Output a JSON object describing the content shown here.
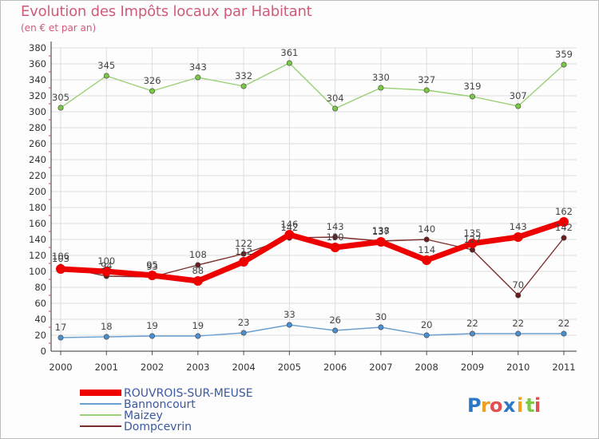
{
  "chart_data": {
    "type": "line",
    "title": "Evolution des Impôts locaux par Habitant",
    "subtitle": "(en € et par an)",
    "xlabel": "",
    "ylabel": "",
    "categories": [
      "2000",
      "2001",
      "2002",
      "2003",
      "2004",
      "2005",
      "2006",
      "2007",
      "2008",
      "2009",
      "2010",
      "2011"
    ],
    "ylim": [
      0,
      380
    ],
    "yticks": [
      0,
      20,
      40,
      60,
      80,
      100,
      120,
      140,
      160,
      180,
      200,
      220,
      240,
      260,
      280,
      300,
      320,
      340,
      360,
      380
    ],
    "grid": true,
    "series": [
      {
        "name": "ROUVROIS-SUR-MEUSE",
        "color": "#ee0000",
        "fill": "#ee0000",
        "bold": true,
        "values": [
          103,
          100,
          95,
          88,
          112,
          146,
          130,
          137,
          114,
          135,
          143,
          162
        ]
      },
      {
        "name": "Bannoncourt",
        "color": "#6a9fd0",
        "fill": "#4a8fd0",
        "bold": false,
        "values": [
          17,
          18,
          19,
          19,
          23,
          33,
          26,
          30,
          20,
          22,
          22,
          22
        ]
      },
      {
        "name": "Maizey",
        "color": "#99d074",
        "fill": "#7ac943",
        "bold": false,
        "values": [
          305,
          345,
          326,
          343,
          332,
          361,
          304,
          330,
          327,
          319,
          307,
          359
        ]
      },
      {
        "name": "Dompcevrin",
        "color": "#7a2e2e",
        "fill": "#6a1c1c",
        "bold": false,
        "values": [
          106,
          94,
          93,
          108,
          122,
          142,
          143,
          138,
          140,
          127,
          70,
          142
        ]
      }
    ],
    "data_labels": [
      [
        "103",
        "100",
        "95",
        "88",
        "112",
        "146",
        "130",
        "137",
        "114",
        "135",
        "143",
        "162"
      ],
      [
        "17",
        "18",
        "19",
        "19",
        "23",
        "33",
        "26",
        "30",
        "20",
        "22",
        "22",
        "22"
      ],
      [
        "305",
        "345",
        "326",
        "343",
        "332",
        "361",
        "304",
        "330",
        "327",
        "319",
        "307",
        "359"
      ],
      [
        "106",
        "94",
        "93",
        "108",
        "122",
        "142",
        "143",
        "138",
        "140",
        "127",
        "70",
        "142"
      ]
    ],
    "legend_position": "bottom-left"
  },
  "logo": {
    "letters": [
      {
        "char": "P",
        "color": "#2a78c8"
      },
      {
        "char": "r",
        "color": "#f0a020"
      },
      {
        "char": "o",
        "color": "#e05050"
      },
      {
        "char": "x",
        "color": "#2a78c8"
      },
      {
        "char": "i",
        "color": "#f0a020"
      },
      {
        "char": "t",
        "color": "#7ac943"
      },
      {
        "char": "i",
        "color": "#e05050"
      }
    ]
  }
}
